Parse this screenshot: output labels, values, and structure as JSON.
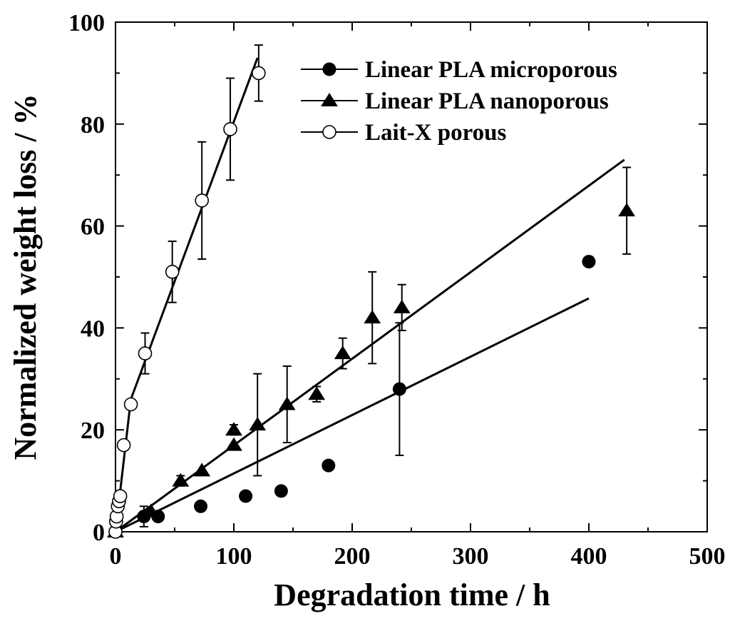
{
  "chart_data": {
    "type": "scatter",
    "title": "",
    "xlabel": "Degradation time / h",
    "ylabel": "Normalized weight loss / %",
    "xlim": [
      0,
      500
    ],
    "ylim": [
      0,
      100
    ],
    "x_ticks": [
      "0",
      "100",
      "200",
      "300",
      "400",
      "500"
    ],
    "y_ticks": [
      "0",
      "20",
      "40",
      "60",
      "80",
      "100"
    ],
    "legend_position": "top-right",
    "series": [
      {
        "name": "Linear PLA microporous",
        "marker": "filled-circle",
        "x": [
          0,
          24,
          36,
          72,
          110,
          140,
          180,
          240,
          400
        ],
        "y": [
          0,
          3,
          3,
          5,
          7,
          8,
          13,
          28,
          53
        ],
        "err": [
          0,
          2,
          0,
          0,
          0,
          0,
          0,
          13,
          0
        ],
        "fit_line": {
          "x": [
            0,
            400
          ],
          "y": [
            0,
            45.8
          ]
        }
      },
      {
        "name": "Linear PLA nanoporous",
        "marker": "filled-triangle",
        "x": [
          0,
          30,
          55,
          73,
          100,
          100,
          120,
          145,
          170,
          192,
          217,
          242,
          432
        ],
        "y": [
          0,
          4,
          10,
          12,
          20,
          17,
          21,
          25,
          27,
          35,
          42,
          44,
          63
        ],
        "err": [
          0,
          0,
          1,
          0,
          1,
          0,
          10,
          7.5,
          1.5,
          3,
          9,
          4.5,
          8.5
        ],
        "fit_line": {
          "x": [
            0,
            430
          ],
          "y": [
            0,
            73
          ]
        }
      },
      {
        "name": "Lait-X porous",
        "marker": "open-circle",
        "x": [
          0,
          0.5,
          1,
          2,
          3,
          4,
          7,
          13,
          25,
          48,
          73,
          97,
          121
        ],
        "y": [
          0,
          2,
          3,
          5,
          6,
          7,
          17,
          25,
          35,
          51,
          65,
          79,
          90
        ],
        "err": [
          0,
          0,
          0,
          0,
          0,
          0,
          0,
          0,
          4,
          6,
          11.5,
          10,
          5.5
        ],
        "fit_line": {
          "x": [
            0,
            13,
            120
          ],
          "y": [
            0,
            26,
            93
          ]
        }
      }
    ]
  }
}
